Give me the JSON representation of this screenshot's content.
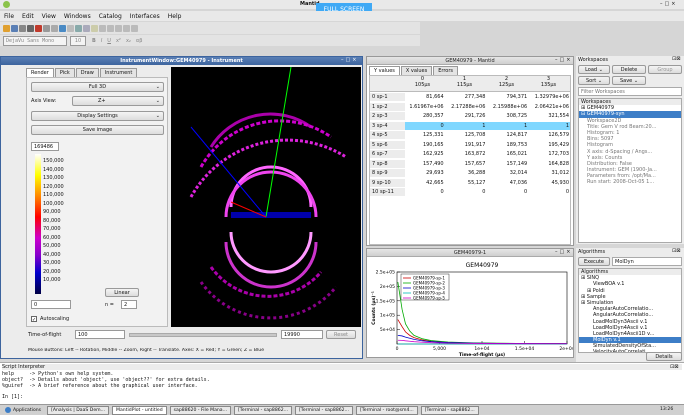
{
  "app": {
    "title": "Mantid",
    "fullscreen_label": "FULL SCREEN"
  },
  "menu": [
    "File",
    "Edit",
    "View",
    "Windows",
    "Catalog",
    "Interfaces",
    "Help"
  ],
  "format_bar": {
    "font": "DejaVu Sans Mono",
    "size": "10"
  },
  "instrument": {
    "title": "InstrumentWindow:GEM40979 - Instrument",
    "tabs": [
      "Render",
      "Pick",
      "Draw",
      "Instrument"
    ],
    "render_mode": "Full 3D",
    "axis_label": "Axis View:",
    "axis_value": "Z+",
    "display_settings": "Display Settings",
    "save_image": "Save image",
    "colorbar_top": "169486",
    "colorbar_ticks": [
      "150,000",
      "140,000",
      "130,000",
      "120,000",
      "110,000",
      "100,000",
      "90,000",
      "80,000",
      "70,000",
      "60,000",
      "50,000",
      "40,000",
      "30,000",
      "20,000",
      "10,000"
    ],
    "colorbar_min": "0",
    "scale_type": "Linear",
    "n_label": "n =",
    "n_value": "2",
    "autoscale": "Autoscaling",
    "tof_label": "Time-of-flight",
    "tof_min": "100",
    "tof_max": "19990",
    "reset": "Reset",
    "hint": "Mouse Buttons: Left -- Rotation, Middle -- Zoom, Right -- Translate. Axes: X = Red; Y = Green; Z = Blue"
  },
  "table": {
    "title": "GEM40979 - Mantid",
    "tabs": [
      "Y values",
      "X values",
      "Errors"
    ],
    "columns": [
      {
        "index": "0",
        "x": "105µs"
      },
      {
        "index": "1",
        "x": "115µs"
      },
      {
        "index": "2",
        "x": "125µs"
      },
      {
        "index": "3",
        "x": "135µs"
      }
    ],
    "rows": [
      {
        "label": "0 sp-1",
        "values": [
          "81,664",
          "277,348",
          "794,371",
          "1.32979e+06"
        ]
      },
      {
        "label": "1 sp-2",
        "values": [
          "1.61967e+06",
          "2.17288e+06",
          "2.15988e+06",
          "2.06421e+06"
        ]
      },
      {
        "label": "2 sp-3",
        "values": [
          "280,357",
          "291,726",
          "308,725",
          "321,554"
        ]
      },
      {
        "label": "3 sp-4",
        "values": [
          "0",
          "1",
          "1",
          "1"
        ]
      },
      {
        "label": "4 sp-5",
        "values": [
          "125,331",
          "125,708",
          "124,817",
          "126,579"
        ]
      },
      {
        "label": "5 sp-6",
        "values": [
          "190,165",
          "191,917",
          "189,753",
          "195,429"
        ]
      },
      {
        "label": "6 sp-7",
        "values": [
          "162,925",
          "163,872",
          "165,021",
          "172,703"
        ]
      },
      {
        "label": "7 sp-8",
        "values": [
          "157,490",
          "157,657",
          "157,149",
          "164,828"
        ]
      },
      {
        "label": "8 sp-9",
        "values": [
          "29,693",
          "36,288",
          "32,014",
          "31,012"
        ]
      },
      {
        "label": "9 sp-10",
        "values": [
          "42,665",
          "55,127",
          "47,036",
          "45,930"
        ]
      },
      {
        "label": "10 sp-11",
        "values": [
          "0",
          "0",
          "0",
          "0"
        ]
      }
    ]
  },
  "plot": {
    "window_title": "GEM40979-1",
    "colors": [
      "#cc0000",
      "#00aa00",
      "#0000cc",
      "#00bbbb",
      "#cc00cc"
    ]
  },
  "chart_data": {
    "type": "line",
    "title": "GEM40979",
    "xlabel": "Time-of-flight (µs)",
    "ylabel": "Counts (µs)⁻¹",
    "xlim": [
      0,
      20000
    ],
    "ylim": [
      0,
      250000
    ],
    "xticks": [
      "0",
      "5,000",
      "1e+04",
      "1.5e+04",
      "2e+04"
    ],
    "yticks": [
      "5e+04",
      "1e+05",
      "1.5e+05",
      "2e+05",
      "2.5e+05"
    ],
    "legend_position": "top-left",
    "series": [
      {
        "name": "GEM40979-sp-1",
        "x": [
          100,
          600,
          1000,
          1500,
          2000,
          3000,
          4000,
          6000,
          9000,
          14000,
          19990
        ],
        "y": [
          85000,
          60000,
          42000,
          30000,
          22000,
          14000,
          9000,
          5000,
          3000,
          1500,
          1000
        ]
      },
      {
        "name": "GEM40979-sp-2",
        "x": [
          100,
          600,
          1000,
          1500,
          2000,
          3000,
          4000,
          6000,
          9000,
          14000,
          19990
        ],
        "y": [
          215000,
          120000,
          70000,
          45000,
          30000,
          18000,
          12000,
          7000,
          4000,
          2000,
          1500
        ]
      },
      {
        "name": "GEM40979-sp-3",
        "x": [
          100,
          600,
          1000,
          1500,
          2000,
          3000,
          4000,
          6000,
          9000,
          14000,
          19990
        ],
        "y": [
          30000,
          28000,
          24000,
          20000,
          16000,
          11000,
          8000,
          5000,
          3000,
          1500,
          1000
        ]
      },
      {
        "name": "GEM40979-sp-4",
        "x": [
          100,
          19990
        ],
        "y": [
          0,
          0
        ]
      },
      {
        "name": "GEM40979-sp-5",
        "x": [
          100,
          600,
          1000,
          1500,
          2000,
          3000,
          4000,
          6000,
          9000,
          14000,
          19990
        ],
        "y": [
          13000,
          12500,
          11000,
          9500,
          8000,
          6000,
          4500,
          3000,
          2000,
          1000,
          800
        ]
      }
    ]
  },
  "workspaces": {
    "title": "Workspaces",
    "load": "Load",
    "delete": "Delete",
    "group": "Group",
    "sort": "Sort",
    "save": "Save",
    "filter_placeholder": "Filter Workspaces",
    "header": "Workspaces",
    "items": [
      "GEM40979",
      "GEM40979-syn"
    ],
    "details": [
      "Workspace2D",
      "Title: Gem V rod Beam:20...",
      "Histogram: 1",
      "Bins: 5097",
      "Histogram",
      "X axis: d-Spacing / Angs...",
      "Y axis: Counts",
      "Distribution: False",
      "Instrument: GEM (1900-Ja...",
      "Parameters from: /opt/Ma...",
      "Run start: 2008-Oct-05 1..."
    ]
  },
  "algorithms": {
    "title": "Algorithms",
    "execute": "Execute",
    "selected": "MolDyn",
    "header": "Algorithms",
    "tree": [
      {
        "text": "SINQ",
        "level": 0,
        "selected": false
      },
      {
        "text": "ViewBOA v.1",
        "level": 2,
        "selected": false
      },
      {
        "text": "Poldi",
        "level": 1,
        "selected": false
      },
      {
        "text": "Sample",
        "level": 0,
        "selected": false
      },
      {
        "text": "Simulation",
        "level": 0,
        "selected": false
      },
      {
        "text": "AngularAutoCorrelatio...",
        "level": 2,
        "selected": false
      },
      {
        "text": "AngularAutoCorrelatio...",
        "level": 2,
        "selected": false
      },
      {
        "text": "LoadMolDyn3Ascii v.1",
        "level": 2,
        "selected": false
      },
      {
        "text": "LoadMolDyn4Ascii v.1",
        "level": 2,
        "selected": false
      },
      {
        "text": "LoadMolDyn4Ascii1D v...",
        "level": 2,
        "selected": false
      },
      {
        "text": "MolDyn v.1",
        "level": 2,
        "selected": true
      },
      {
        "text": "SimulatedDensityOfSta...",
        "level": 2,
        "selected": false
      },
      {
        "text": "VelocityAutoCorrelati...",
        "level": 2,
        "selected": false
      },
      {
        "text": "VelocityCrossCorrelat...",
        "level": 2,
        "selected": false
      },
      {
        "text": "Transforms",
        "level": 0,
        "selected": false
      },
      {
        "text": "Utility",
        "level": 0,
        "selected": false
      },
      {
        "text": "Workflow",
        "level": 0,
        "selected": false
      }
    ],
    "details": "Details"
  },
  "script": {
    "title": "Script Interpreter",
    "lines": [
      "help     -> Python's own help system.",
      "object?  -> Details about 'object', use 'object??' for extra details.",
      "%guiref  -> A brief reference about the graphical user interface.",
      "",
      "In [1]:"
    ]
  },
  "taskbar": {
    "items": [
      "Applications",
      "[Analysis | DaaS Dem...",
      "MantidPlot - untitled",
      "sap88620 - File Mana...",
      "[Terminal - sap8862...",
      "[Terminal - sap8862...",
      "[Terminal - root@sm4...",
      "[Terminal - sap8862..."
    ],
    "clock": "13:26"
  }
}
